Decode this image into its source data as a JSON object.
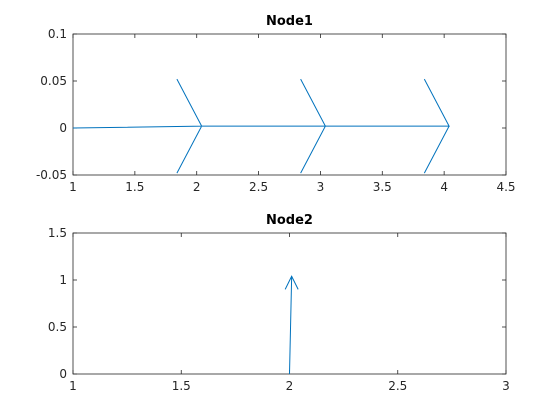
{
  "figure": {
    "background": "#ffffff",
    "line_color": "#0072BD"
  },
  "chart_data": [
    {
      "type": "line",
      "title": "Node1",
      "xlabel": "",
      "ylabel": "",
      "xlim": [
        1,
        4.5
      ],
      "ylim": [
        -0.05,
        0.1
      ],
      "grid": false,
      "xticks": [
        1,
        1.5,
        2,
        2.5,
        3,
        3.5,
        4,
        4.5
      ],
      "xtick_labels": [
        "1",
        "1.5",
        "2",
        "2.5",
        "3",
        "3.5",
        "4",
        "4.5"
      ],
      "yticks": [
        -0.05,
        0,
        0.05,
        0.1
      ],
      "ytick_labels": [
        "-0.05",
        "0",
        "0.05",
        "0.1"
      ],
      "series": [
        {
          "points": [
            [
              1,
              0
            ],
            [
              2.04,
              0.002
            ],
            [
              1.84,
              0.052
            ],
            [
              2.04,
              0.002
            ],
            [
              1.84,
              -0.048
            ],
            [
              2.04,
              0.002
            ],
            [
              3.04,
              0.002
            ],
            [
              2.84,
              0.052
            ],
            [
              3.04,
              0.002
            ],
            [
              2.84,
              -0.048
            ],
            [
              3.04,
              0.002
            ],
            [
              4.04,
              0.002
            ],
            [
              3.84,
              0.052
            ],
            [
              4.04,
              0.002
            ],
            [
              3.84,
              -0.048
            ]
          ]
        }
      ]
    },
    {
      "type": "line",
      "title": "Node2",
      "xlabel": "",
      "ylabel": "",
      "xlim": [
        1,
        3
      ],
      "ylim": [
        0,
        1.5
      ],
      "grid": false,
      "xticks": [
        1,
        1.5,
        2,
        2.5,
        3
      ],
      "xtick_labels": [
        "1",
        "1.5",
        "2",
        "2.5",
        "3"
      ],
      "yticks": [
        0,
        0.5,
        1,
        1.5
      ],
      "ytick_labels": [
        "0",
        "0.5",
        "1",
        "1.5"
      ],
      "series": [
        {
          "points": [
            [
              2,
              0
            ],
            [
              2.01,
              1.04
            ],
            [
              1.98,
              0.9
            ],
            [
              2.01,
              1.04
            ],
            [
              2.04,
              0.9
            ]
          ]
        }
      ]
    }
  ]
}
